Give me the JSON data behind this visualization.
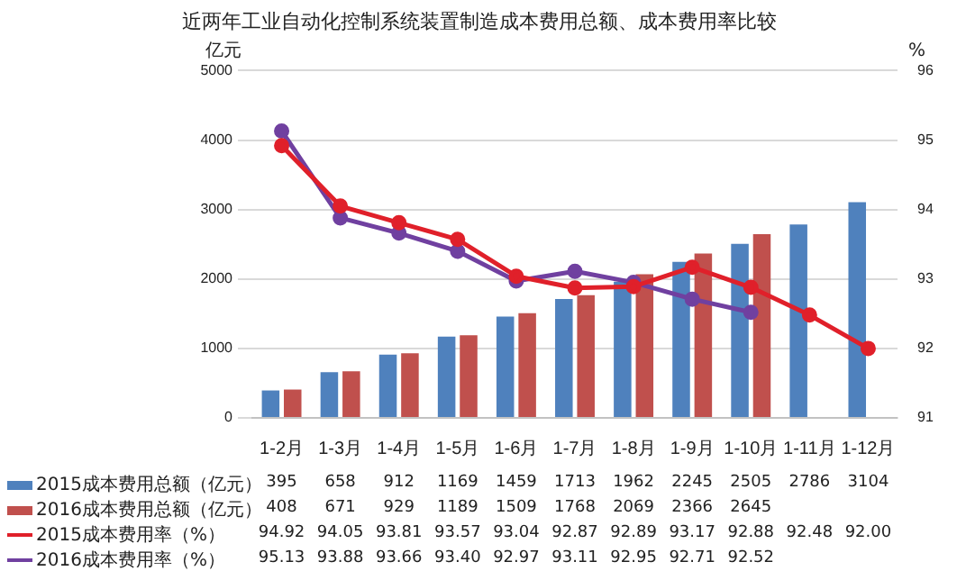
{
  "chart_data": {
    "type": "bar",
    "title": "近两年工业自动化控制系统装置制造成本费用总额、成本费用率比较",
    "ylabel": "亿元",
    "y2label": "%",
    "categories": [
      "1-2月",
      "1-3月",
      "1-4月",
      "1-5月",
      "1-6月",
      "1-7月",
      "1-8月",
      "1-9月",
      "1-10月",
      "1-11月",
      "1-12月"
    ],
    "ylim": [
      0,
      5000
    ],
    "yticks": [
      0,
      1000,
      2000,
      3000,
      4000,
      5000
    ],
    "y2lim": [
      91,
      96
    ],
    "y2ticks": [
      91,
      92,
      93,
      94,
      95,
      96
    ],
    "grid": "y",
    "marker": "circle",
    "legend": "bottom left",
    "series": [
      {
        "name": "2015成本费用总额（亿元）",
        "color": "#4f81bd",
        "values": [
          395,
          658,
          912,
          1169,
          1459,
          1713,
          1962,
          2245,
          2505,
          2786,
          3104
        ],
        "value_labels": [
          "395",
          "658",
          "912",
          "1169",
          "1459",
          "1713",
          "1962",
          "2245",
          "2505",
          "2786",
          "3104"
        ]
      },
      {
        "name": "2016成本费用总额（亿元）",
        "color": "#c0504d",
        "values": [
          408,
          671,
          929,
          1189,
          1509,
          1768,
          2069,
          2366,
          2645,
          null,
          null
        ],
        "value_labels": [
          "408",
          "671",
          "929",
          "1189",
          "1509",
          "1768",
          "2069",
          "2366",
          "2645",
          null,
          null
        ]
      },
      {
        "name": "2015成本费用率（%）",
        "type": "line",
        "axis": "y2",
        "color": "#e0202a",
        "values": [
          94.92,
          94.05,
          93.81,
          93.57,
          93.04,
          92.87,
          92.89,
          93.17,
          92.88,
          92.48,
          92
        ],
        "value_labels": [
          "94.92",
          "94.05",
          "93.81",
          "93.57",
          "93.04",
          "92.87",
          "92.89",
          "93.17",
          "92.88",
          "92.48",
          "92.00"
        ]
      },
      {
        "name": "2016成本费用率（%）",
        "type": "line",
        "axis": "y2",
        "color": "#7040a0",
        "values": [
          95.13,
          93.88,
          93.66,
          93.4,
          92.97,
          93.11,
          92.95,
          92.71,
          92.52,
          null,
          null
        ],
        "value_labels": [
          "95.13",
          "93.88",
          "93.66",
          "93.40",
          "92.97",
          "93.11",
          "92.95",
          "92.71",
          "92.52",
          null,
          null
        ]
      }
    ]
  }
}
